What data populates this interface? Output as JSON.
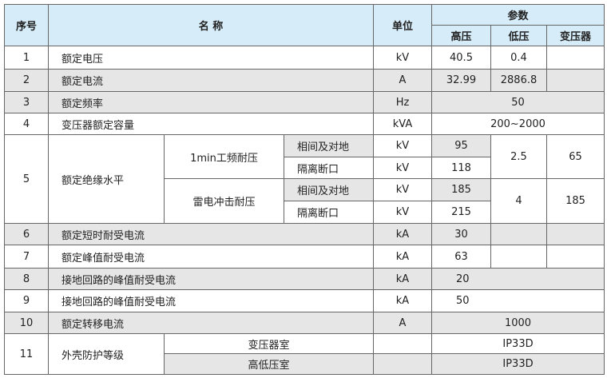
{
  "colors": {
    "header_bg": "#d6ecf8",
    "gray_row": "#e6e6e6",
    "border": "#666666"
  },
  "header": {
    "no": "序号",
    "name": "名 称",
    "unit": "单位",
    "params": "参数",
    "hv": "高压",
    "lv": "低压",
    "tr": "变压器"
  },
  "rows": [
    {
      "no": "1",
      "name": "额定电压",
      "unit": "kV",
      "hv": "40.5",
      "lv": "0.4",
      "tr": ""
    },
    {
      "no": "2",
      "name": "额定电流",
      "unit": "A",
      "hv": "32.99",
      "lv": "2886.8",
      "tr": ""
    },
    {
      "no": "3",
      "name": "额定频率",
      "unit": "Hz",
      "value": "50"
    },
    {
      "no": "4",
      "name": "变压器额定容量",
      "unit": "kVA",
      "value": "200~2000"
    },
    {
      "no": "5",
      "name": "额定绝缘水平",
      "groups": [
        {
          "label": "1min工频耐压",
          "lv": "2.5",
          "tr": "65",
          "subs": [
            {
              "label": "相间及对地",
              "unit": "kV",
              "hv": "95"
            },
            {
              "label": "隔离断口",
              "unit": "kV",
              "hv": "118"
            }
          ]
        },
        {
          "label": "雷电冲击耐压",
          "lv": "4",
          "tr": "185",
          "subs": [
            {
              "label": "相间及对地",
              "unit": "kV",
              "hv": "185"
            },
            {
              "label": "隔离断口",
              "unit": "kV",
              "hv": "215"
            }
          ]
        }
      ]
    },
    {
      "no": "6",
      "name": "额定短时耐受电流",
      "unit": "kA",
      "hv": "30",
      "lv": "",
      "tr": ""
    },
    {
      "no": "7",
      "name": "额定峰值耐受电流",
      "unit": "kA",
      "hv": "63",
      "lv": "",
      "tr": ""
    },
    {
      "no": "8",
      "name": "接地回路的峰值耐受电流",
      "unit": "kA",
      "value": "20"
    },
    {
      "no": "9",
      "name": "接地回路的峰值耐受电流",
      "unit": "kA",
      "value": "50"
    },
    {
      "no": "10",
      "name": "额定转移电流",
      "unit": "A",
      "value": "1000"
    },
    {
      "no": "11",
      "name": "外壳防护等级",
      "subs": [
        {
          "label": "变压器室",
          "unit": "",
          "value": "IP33D"
        },
        {
          "label": "高低压室",
          "unit": "",
          "value": "IP33D"
        }
      ]
    }
  ]
}
